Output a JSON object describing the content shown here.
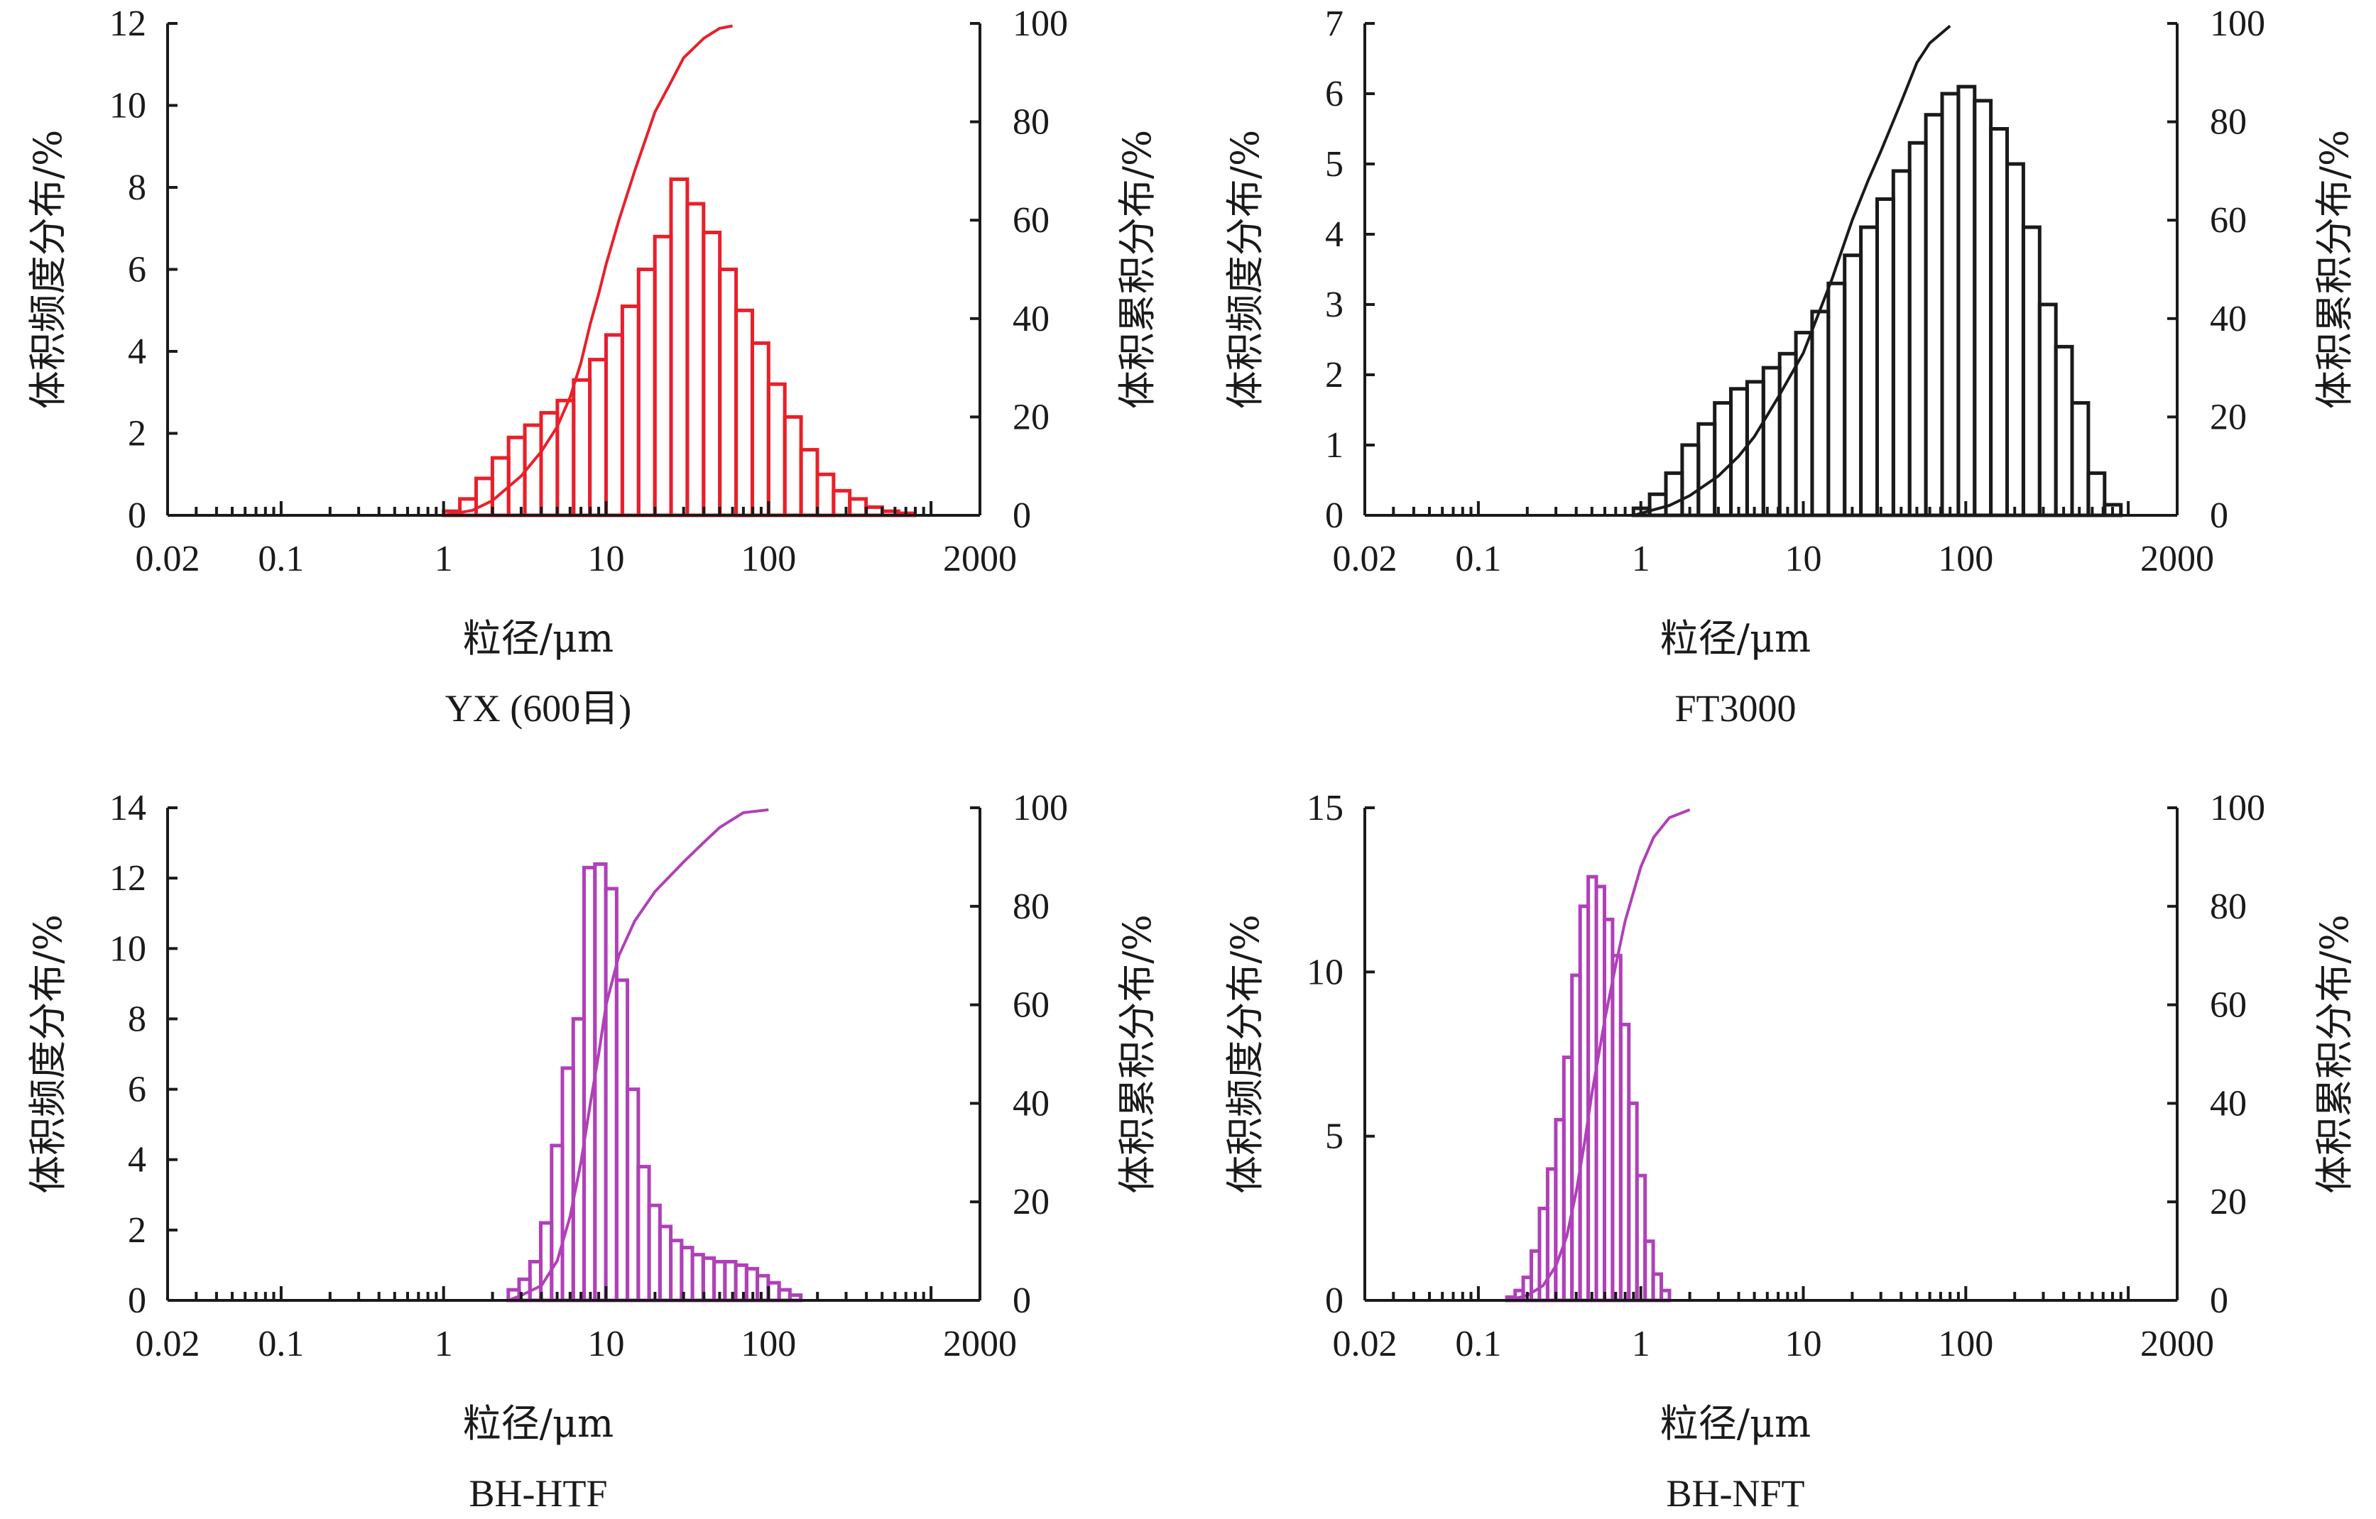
{
  "chart_data": [
    {
      "type": "bar",
      "title": "YX (600目)",
      "xlabel": "粒径/μm",
      "ylabel": "体积频度分布/%",
      "y2label": "体积累积分布/%",
      "xscale": "log",
      "xlim": [
        0.02,
        2000
      ],
      "xticks": [
        "0.02",
        "0.1",
        "1",
        "10",
        "100",
        "2000"
      ],
      "ylim": [
        0,
        12
      ],
      "yticks": [
        "0",
        "2",
        "4",
        "6",
        "8",
        "10",
        "12"
      ],
      "y2lim": [
        0,
        100
      ],
      "y2ticks": [
        "0",
        "20",
        "40",
        "60",
        "80",
        "100"
      ],
      "color": "#e8202a",
      "bins_per_decade": 10,
      "bar_start": 1.0,
      "values": [
        0.1,
        0.4,
        0.9,
        1.4,
        1.9,
        2.2,
        2.5,
        2.8,
        3.3,
        3.8,
        4.4,
        5.1,
        6.0,
        6.8,
        8.2,
        7.6,
        6.9,
        6.0,
        5.0,
        4.2,
        3.2,
        2.4,
        1.6,
        1.0,
        0.6,
        0.4,
        0.2,
        0.1,
        0.05
      ],
      "cumulative": {
        "x": [
          1.0,
          1.5,
          2,
          3,
          4,
          5,
          6,
          7,
          8,
          9,
          10,
          12,
          15,
          20,
          25,
          30,
          40,
          50,
          60
        ],
        "y": [
          0,
          1,
          3,
          8,
          13,
          18,
          24,
          31,
          39,
          45,
          51,
          60,
          70,
          82,
          88,
          93,
          97,
          99,
          99.5
        ]
      }
    },
    {
      "type": "bar",
      "title": "FT3000",
      "xlabel": "粒径/μm",
      "ylabel": "体积频度分布/%",
      "y2label": "体积累积分布/%",
      "xscale": "log",
      "xlim": [
        0.02,
        2000
      ],
      "xticks": [
        "0.02",
        "0.1",
        "1",
        "10",
        "100",
        "2000"
      ],
      "ylim": [
        0,
        7
      ],
      "yticks": [
        "0",
        "1",
        "2",
        "3",
        "4",
        "5",
        "6",
        "7"
      ],
      "y2lim": [
        0,
        100
      ],
      "y2ticks": [
        "0",
        "20",
        "40",
        "60",
        "80",
        "100"
      ],
      "color": "#1a1a1a",
      "bins_per_decade": 10,
      "bar_start": 0.9,
      "values": [
        0.1,
        0.3,
        0.6,
        1.0,
        1.3,
        1.6,
        1.8,
        1.9,
        2.1,
        2.3,
        2.6,
        2.9,
        3.3,
        3.7,
        4.1,
        4.5,
        4.9,
        5.3,
        5.7,
        6.0,
        6.1,
        5.9,
        5.5,
        5.0,
        4.1,
        3.0,
        2.4,
        1.6,
        0.6,
        0.15
      ],
      "cumulative": {
        "x": [
          0.9,
          1.5,
          2,
          3,
          4,
          5,
          7,
          10,
          15,
          20,
          25,
          30,
          40,
          50,
          60,
          80
        ],
        "y": [
          0,
          2,
          4,
          8,
          12,
          16,
          24,
          33,
          48,
          60,
          68,
          74,
          84,
          92,
          96,
          99.5
        ]
      }
    },
    {
      "type": "bar",
      "title": "BH-HTF",
      "xlabel": "粒径/μm",
      "ylabel": "体积频度分布/%",
      "y2label": "体积累积分布/%",
      "xscale": "log",
      "xlim": [
        0.02,
        2000
      ],
      "xticks": [
        "0.02",
        "0.1",
        "1",
        "10",
        "100",
        "2000"
      ],
      "ylim": [
        0,
        14
      ],
      "yticks": [
        "0",
        "2",
        "4",
        "6",
        "8",
        "10",
        "12",
        "14"
      ],
      "y2lim": [
        0,
        100
      ],
      "y2ticks": [
        "0",
        "20",
        "40",
        "60",
        "80",
        "100"
      ],
      "color": "#b040b8",
      "bins_per_decade": 15,
      "bar_start": 2.5,
      "values": [
        0.3,
        0.6,
        1.1,
        2.2,
        4.4,
        6.6,
        8.0,
        12.3,
        12.4,
        11.7,
        9.1,
        6.0,
        3.8,
        2.7,
        2.1,
        1.7,
        1.5,
        1.3,
        1.2,
        1.1,
        1.1,
        1.0,
        0.9,
        0.7,
        0.5,
        0.3,
        0.15
      ],
      "cumulative": {
        "x": [
          2.5,
          3,
          4,
          5,
          6,
          7,
          8,
          9,
          10,
          12,
          15,
          20,
          30,
          40,
          50,
          70,
          100
        ],
        "y": [
          0,
          1,
          3,
          8,
          17,
          28,
          40,
          50,
          60,
          70,
          77,
          83,
          89,
          93,
          96,
          99,
          99.6
        ]
      }
    },
    {
      "type": "bar",
      "title": "BH-NFT",
      "xlabel": "粒径/μm",
      "ylabel": "体积频度分布/%",
      "y2label": "体积累积分布/%",
      "xscale": "log",
      "xlim": [
        0.02,
        2000
      ],
      "xticks": [
        "0.02",
        "0.1",
        "1",
        "10",
        "100",
        "2000"
      ],
      "ylim": [
        0,
        15
      ],
      "yticks": [
        "0",
        "5",
        "10",
        "15"
      ],
      "y2lim": [
        0,
        100
      ],
      "y2ticks": [
        "0",
        "20",
        "40",
        "60",
        "80",
        "100"
      ],
      "color": "#b040b8",
      "bins_per_decade": 20,
      "bar_start": 0.15,
      "values": [
        0.1,
        0.3,
        0.7,
        1.5,
        2.8,
        4.0,
        5.5,
        7.4,
        9.9,
        12.0,
        12.9,
        12.6,
        11.6,
        10.5,
        8.4,
        6.0,
        3.8,
        1.8,
        0.8,
        0.3
      ],
      "cumulative": {
        "x": [
          0.15,
          0.2,
          0.25,
          0.3,
          0.35,
          0.4,
          0.45,
          0.5,
          0.6,
          0.7,
          0.8,
          1.0,
          1.2,
          1.5,
          2.0
        ],
        "y": [
          0,
          1,
          3,
          7,
          13,
          22,
          32,
          42,
          57,
          68,
          77,
          88,
          94,
          98,
          99.6
        ]
      }
    }
  ]
}
